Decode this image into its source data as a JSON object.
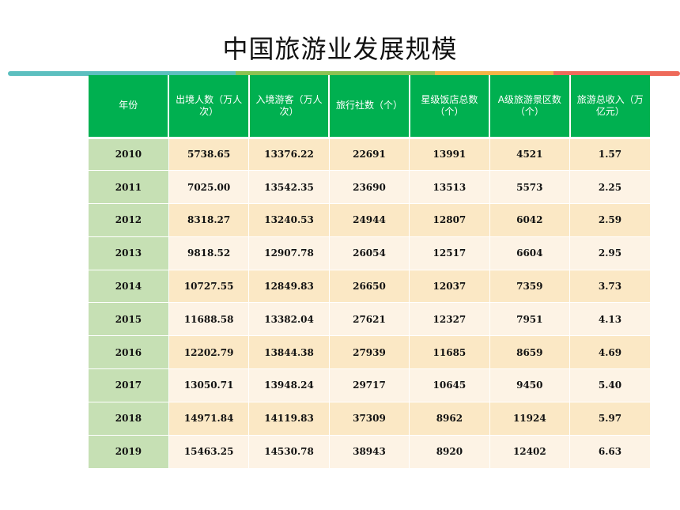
{
  "title": "中国旅游业发展规模",
  "colors": {
    "header_bg": "#00b050",
    "year_col_bg": "#c6e0b4",
    "row_band_dark": "#fbe8c5",
    "row_band_light": "#fdf3e5",
    "accent_teal": "#5cbfbf",
    "accent_green": "#8cc152",
    "accent_orange": "#f4b346",
    "accent_red": "#ee6a5a"
  },
  "table": {
    "headers": [
      "年份",
      "出境人数（万人次）",
      "入境游客（万人次）",
      "旅行社数（个）",
      "星级饭店总数（个）",
      "A级旅游景区数（个）",
      "旅游总收入（万亿元）"
    ],
    "rows": [
      [
        "2010",
        "5738.65",
        "13376.22",
        "22691",
        "13991",
        "4521",
        "1.57"
      ],
      [
        "2011",
        "7025.00",
        "13542.35",
        "23690",
        "13513",
        "5573",
        "2.25"
      ],
      [
        "2012",
        "8318.27",
        "13240.53",
        "24944",
        "12807",
        "6042",
        "2.59"
      ],
      [
        "2013",
        "9818.52",
        "12907.78",
        "26054",
        "12517",
        "6604",
        "2.95"
      ],
      [
        "2014",
        "10727.55",
        "12849.83",
        "26650",
        "12037",
        "7359",
        "3.73"
      ],
      [
        "2015",
        "11688.58",
        "13382.04",
        "27621",
        "12327",
        "7951",
        "4.13"
      ],
      [
        "2016",
        "12202.79",
        "13844.38",
        "27939",
        "11685",
        "8659",
        "4.69"
      ],
      [
        "2017",
        "13050.71",
        "13948.24",
        "29717",
        "10645",
        "9450",
        "5.40"
      ],
      [
        "2018",
        "14971.84",
        "14119.83",
        "37309",
        "8962",
        "11924",
        "5.97"
      ],
      [
        "2019",
        "15463.25",
        "14530.78",
        "38943",
        "8920",
        "12402",
        "6.63"
      ]
    ]
  }
}
